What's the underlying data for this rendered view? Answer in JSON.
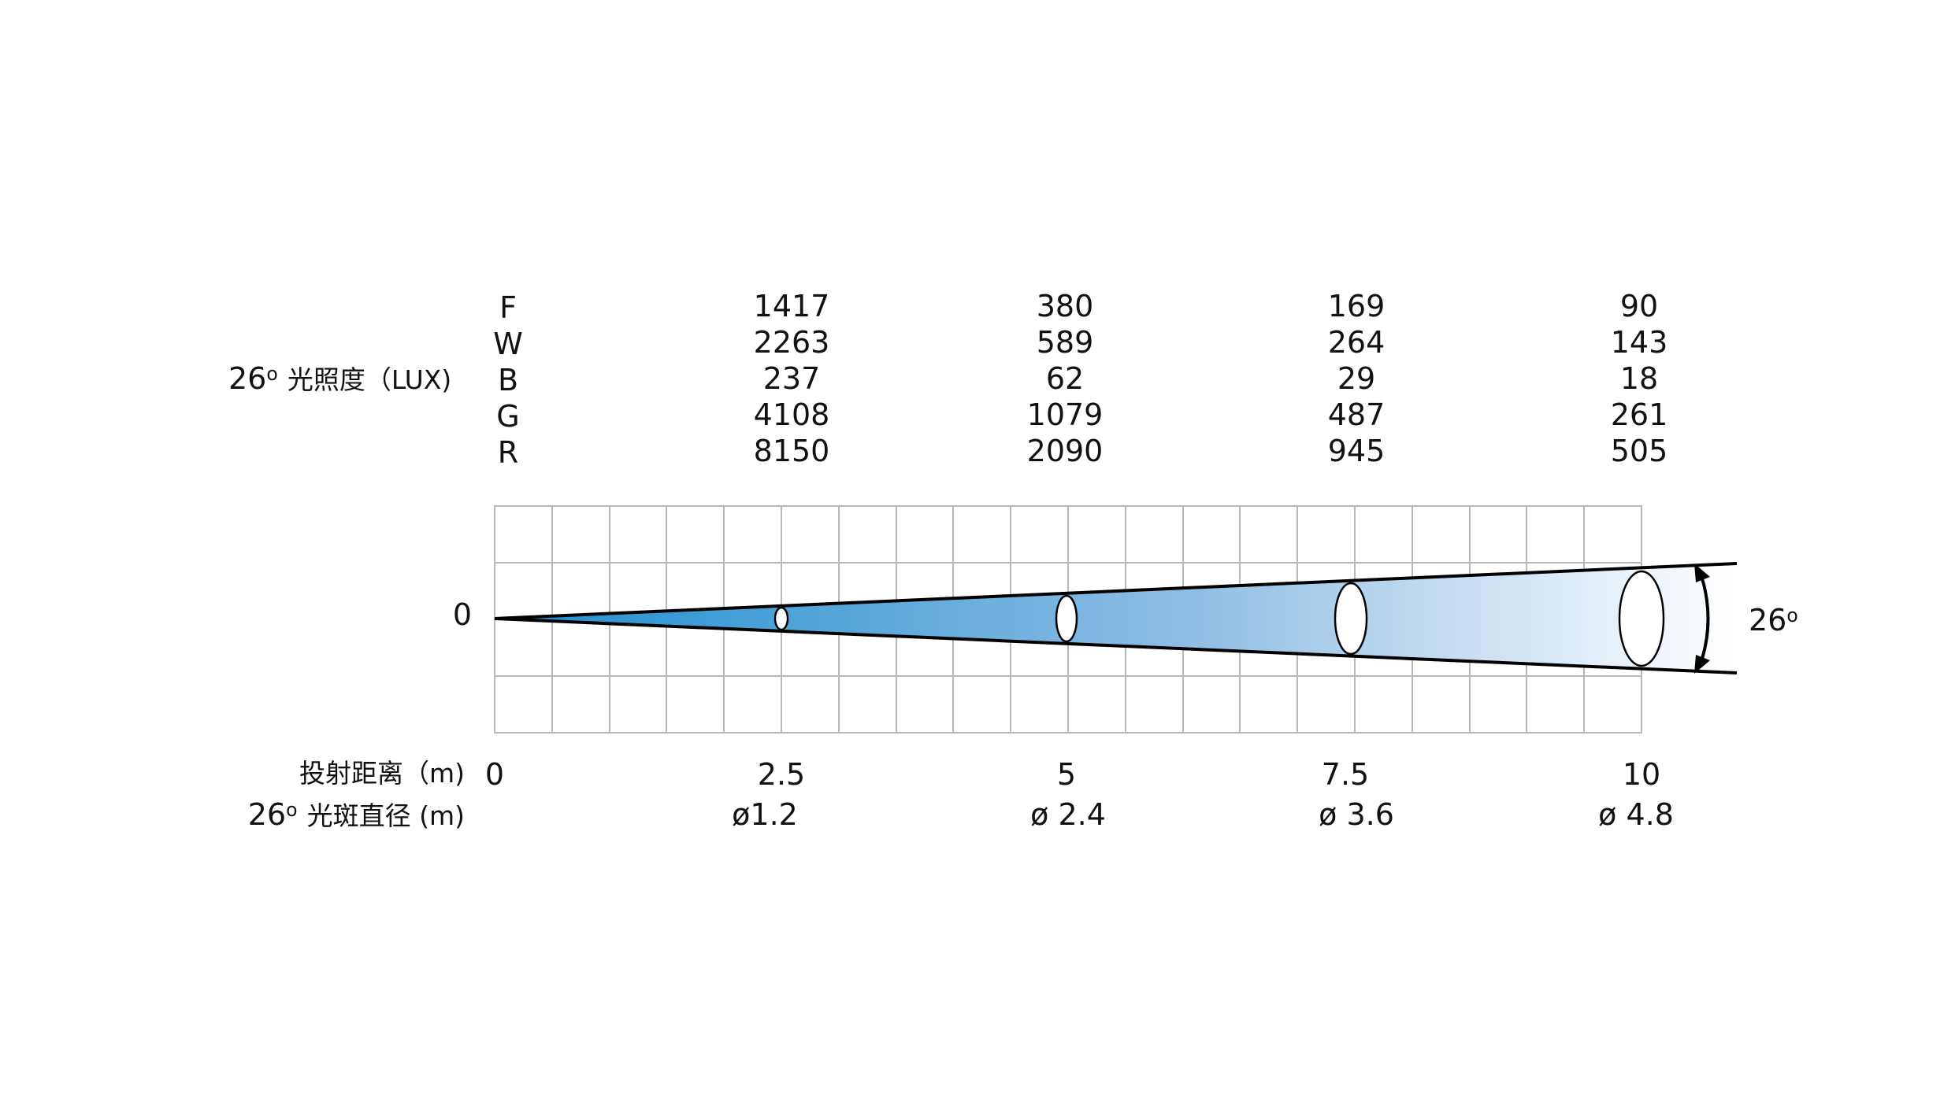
{
  "beam_angle": "26",
  "illuminance": {
    "prefix": "26",
    "label": "光照度（LUX)",
    "channels": [
      "F",
      "W",
      "B",
      "G",
      "R"
    ],
    "columns": [
      {
        "distance": "2.5",
        "values": [
          "1417",
          "2263",
          "237",
          "4108",
          "8150"
        ]
      },
      {
        "distance": "5",
        "values": [
          "380",
          "589",
          "62",
          "1079",
          "2090"
        ]
      },
      {
        "distance": "7.5",
        "values": [
          "169",
          "264",
          "29",
          "487",
          "945"
        ]
      },
      {
        "distance": "10",
        "values": [
          "90",
          "143",
          "18",
          "261",
          "505"
        ]
      }
    ]
  },
  "axis_origin_label": "0",
  "distance": {
    "label": "投射距离（m)",
    "ticks": [
      "0",
      "2.5",
      "5",
      "7.5",
      "10"
    ]
  },
  "spot": {
    "prefix": "26",
    "label": "光斑直径 (m)",
    "diameters": [
      "ø1.2",
      "ø 2.4",
      "ø 3.6",
      "ø 4.8"
    ]
  },
  "angle_label": "26",
  "colors": {
    "beam_start": "#1d8fd1",
    "beam_mid": "#8dbce3",
    "beam_end": "#ffffff",
    "grid": "#b8b8b8",
    "line": "#000000"
  }
}
